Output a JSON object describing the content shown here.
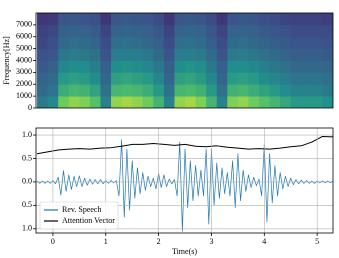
{
  "chart_data": [
    {
      "type": "heatmap",
      "ylabel": "Frequency[Hz]",
      "colormap": "viridis",
      "xlim": [
        -0.32,
        5.3
      ],
      "ylim": [
        0,
        8000
      ],
      "yticks": [
        0,
        1000,
        2000,
        3000,
        4000,
        5000,
        6000,
        7000
      ],
      "x": [
        -0.2,
        0,
        0.2,
        0.4,
        0.6,
        0.8,
        1.0,
        1.2,
        1.4,
        1.6,
        1.8,
        2.0,
        2.2,
        2.4,
        2.6,
        2.8,
        3.0,
        3.2,
        3.4,
        3.6,
        3.8,
        4.0,
        4.2,
        4.4,
        4.6,
        4.8,
        5.0,
        5.2
      ],
      "y": [
        500,
        1500,
        2500,
        3500,
        4500,
        5500,
        6500,
        7500
      ],
      "values": [
        [
          0.41,
          0.47,
          0.77,
          0.83,
          0.8,
          0.71,
          0.44,
          0.83,
          0.86,
          0.83,
          0.77,
          0.65,
          0.44,
          0.83,
          0.86,
          0.8,
          0.65,
          0.44,
          0.8,
          0.83,
          0.77,
          0.71,
          0.65,
          0.59,
          0.53,
          0.53,
          0.53,
          0.5
        ],
        [
          0.35,
          0.39,
          0.62,
          0.66,
          0.64,
          0.57,
          0.37,
          0.66,
          0.68,
          0.66,
          0.62,
          0.53,
          0.37,
          0.66,
          0.68,
          0.64,
          0.53,
          0.37,
          0.64,
          0.66,
          0.62,
          0.57,
          0.53,
          0.48,
          0.44,
          0.44,
          0.44,
          0.41
        ],
        [
          0.32,
          0.35,
          0.53,
          0.56,
          0.54,
          0.49,
          0.33,
          0.56,
          0.58,
          0.56,
          0.53,
          0.46,
          0.33,
          0.56,
          0.58,
          0.54,
          0.46,
          0.33,
          0.54,
          0.56,
          0.53,
          0.49,
          0.46,
          0.42,
          0.39,
          0.39,
          0.39,
          0.37
        ],
        [
          0.28,
          0.31,
          0.46,
          0.49,
          0.48,
          0.43,
          0.3,
          0.49,
          0.51,
          0.49,
          0.46,
          0.4,
          0.3,
          0.49,
          0.51,
          0.48,
          0.4,
          0.3,
          0.48,
          0.49,
          0.46,
          0.43,
          0.4,
          0.37,
          0.34,
          0.34,
          0.34,
          0.33
        ],
        [
          0.25,
          0.27,
          0.4,
          0.42,
          0.41,
          0.37,
          0.26,
          0.42,
          0.43,
          0.42,
          0.4,
          0.35,
          0.26,
          0.42,
          0.43,
          0.41,
          0.35,
          0.26,
          0.41,
          0.42,
          0.4,
          0.37,
          0.35,
          0.32,
          0.3,
          0.3,
          0.3,
          0.28
        ],
        [
          0.22,
          0.24,
          0.34,
          0.36,
          0.35,
          0.32,
          0.23,
          0.36,
          0.37,
          0.36,
          0.34,
          0.3,
          0.23,
          0.36,
          0.37,
          0.35,
          0.3,
          0.23,
          0.35,
          0.36,
          0.34,
          0.32,
          0.3,
          0.28,
          0.26,
          0.26,
          0.26,
          0.25
        ],
        [
          0.2,
          0.22,
          0.31,
          0.32,
          0.32,
          0.29,
          0.21,
          0.32,
          0.33,
          0.32,
          0.31,
          0.27,
          0.21,
          0.32,
          0.33,
          0.32,
          0.27,
          0.21,
          0.32,
          0.32,
          0.31,
          0.29,
          0.27,
          0.25,
          0.23,
          0.23,
          0.23,
          0.23
        ],
        [
          0.17,
          0.18,
          0.26,
          0.27,
          0.26,
          0.24,
          0.17,
          0.27,
          0.28,
          0.27,
          0.26,
          0.23,
          0.17,
          0.27,
          0.28,
          0.26,
          0.23,
          0.17,
          0.26,
          0.27,
          0.26,
          0.24,
          0.23,
          0.21,
          0.2,
          0.2,
          0.2,
          0.19
        ]
      ]
    },
    {
      "type": "line",
      "xlabel": "Time(s)",
      "grid": true,
      "legend": "lower left",
      "xlim": [
        -0.32,
        5.3
      ],
      "xticks": [
        0,
        1,
        2,
        3,
        4,
        5
      ],
      "ylim": [
        -1.09,
        1.15
      ],
      "yticks": [
        {
          "value": -1,
          "label": "1.0"
        },
        {
          "value": -0.5,
          "label": "0.5"
        },
        {
          "value": 0,
          "label": "0.0"
        },
        {
          "value": 0.5,
          "label": "0.5"
        },
        {
          "value": 1,
          "label": "1.0"
        }
      ],
      "series": [
        {
          "name": "Rev. Speech",
          "color": "#1f77b4",
          "x": [
            -0.3,
            -0.25,
            -0.2,
            -0.15,
            -0.1,
            -0.05,
            0,
            0.05,
            0.1,
            0.15,
            0.2,
            0.25,
            0.3,
            0.35,
            0.4,
            0.45,
            0.5,
            0.55,
            0.6,
            0.65,
            0.7,
            0.75,
            0.8,
            0.85,
            0.9,
            0.95,
            1.0,
            1.05,
            1.1,
            1.15,
            1.2,
            1.25,
            1.3,
            1.35,
            1.4,
            1.45,
            1.5,
            1.55,
            1.6,
            1.65,
            1.7,
            1.75,
            1.8,
            1.85,
            1.9,
            1.95,
            2.0,
            2.05,
            2.1,
            2.15,
            2.2,
            2.25,
            2.3,
            2.35,
            2.4,
            2.45,
            2.5,
            2.55,
            2.6,
            2.65,
            2.7,
            2.75,
            2.8,
            2.85,
            2.9,
            2.95,
            3.0,
            3.05,
            3.1,
            3.15,
            3.2,
            3.25,
            3.3,
            3.35,
            3.4,
            3.45,
            3.5,
            3.55,
            3.6,
            3.65,
            3.7,
            3.75,
            3.8,
            3.85,
            3.9,
            3.95,
            4.0,
            4.05,
            4.1,
            4.15,
            4.2,
            4.25,
            4.3,
            4.35,
            4.4,
            4.45,
            4.5,
            4.55,
            4.6,
            4.65,
            4.7,
            4.75,
            4.8,
            4.85,
            4.9,
            4.95,
            5.0,
            5.05,
            5.1,
            5.15,
            5.2,
            5.25,
            5.3
          ],
          "values": [
            0.02,
            -0.03,
            0.02,
            -0.03,
            0.02,
            -0.03,
            0.03,
            -0.04,
            0.1,
            -0.28,
            0.24,
            -0.2,
            0.15,
            -0.16,
            0.12,
            -0.1,
            0.13,
            -0.1,
            0.08,
            -0.07,
            0.06,
            -0.05,
            0.05,
            -0.04,
            0.05,
            -0.04,
            0.03,
            -0.03,
            0.03,
            -0.02,
            0.03,
            -0.3,
            0.9,
            -0.75,
            0.7,
            -0.6,
            0.45,
            -0.35,
            0.3,
            -0.25,
            0.2,
            -0.18,
            0.12,
            -0.1,
            0.08,
            -0.15,
            0.18,
            -0.12,
            0.15,
            -0.1,
            0.06,
            -0.04,
            0.05,
            -0.3,
            0.85,
            -1.05,
            0.7,
            -0.55,
            0.45,
            -0.4,
            0.35,
            -0.3,
            0.25,
            -0.3,
            0.7,
            -0.9,
            0.7,
            -0.5,
            0.4,
            -0.35,
            0.3,
            -0.25,
            0.2,
            -0.3,
            0.45,
            -0.55,
            0.6,
            -0.4,
            0.25,
            -0.2,
            0.15,
            -0.12,
            0.1,
            -0.08,
            0.06,
            -0.3,
            0.8,
            -0.85,
            0.6,
            -0.45,
            0.35,
            -0.3,
            0.2,
            -0.15,
            0.12,
            -0.1,
            0.08,
            -0.06,
            0.05,
            -0.04,
            0.04,
            -0.03,
            0.03,
            -0.03,
            0.02,
            -0.03,
            0.02,
            -0.02,
            0.02,
            -0.02,
            0.02,
            -0.02,
            0.02
          ]
        },
        {
          "name": "Attention Vector",
          "color": "#000000",
          "x": [
            -0.3,
            -0.1,
            0.1,
            0.3,
            0.5,
            0.7,
            0.9,
            1.1,
            1.3,
            1.5,
            1.7,
            1.9,
            2.1,
            2.3,
            2.5,
            2.7,
            2.9,
            3.1,
            3.3,
            3.5,
            3.7,
            3.9,
            4.1,
            4.3,
            4.5,
            4.7,
            4.9,
            5.1,
            5.3
          ],
          "values": [
            0.6,
            0.64,
            0.68,
            0.7,
            0.71,
            0.7,
            0.72,
            0.73,
            0.76,
            0.8,
            0.8,
            0.82,
            0.8,
            0.78,
            0.8,
            0.76,
            0.75,
            0.77,
            0.74,
            0.72,
            0.7,
            0.71,
            0.7,
            0.72,
            0.75,
            0.77,
            0.85,
            0.97,
            0.96
          ]
        }
      ]
    }
  ]
}
